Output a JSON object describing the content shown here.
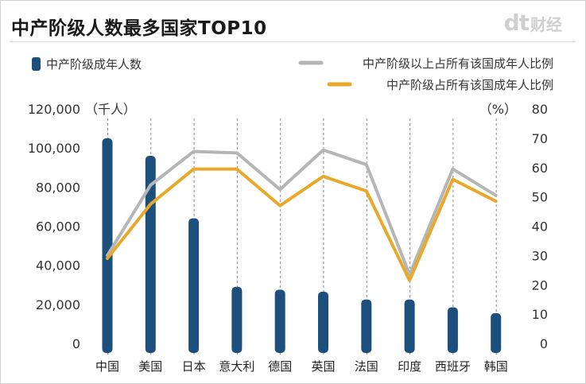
{
  "title": "中产阶级人数最多国家TOP10",
  "logo": {
    "mark": "dt",
    "name": "财经"
  },
  "chart_data": {
    "type": "bar+line",
    "title": "中产阶级人数最多国家TOP10",
    "categories": [
      "中国",
      "美国",
      "日本",
      "意大利",
      "德国",
      "英国",
      "法国",
      "印度",
      "西班牙",
      "韩国"
    ],
    "left_axis": {
      "unit_label": "（千人）",
      "ylim": [
        0,
        120000
      ],
      "ticks": [
        "0",
        "20,000",
        "40,000",
        "60,000",
        "80,000",
        "100,000",
        "120,000"
      ],
      "tick_values": [
        0,
        20000,
        40000,
        60000,
        80000,
        100000,
        120000
      ]
    },
    "right_axis": {
      "unit_label": "（%）",
      "ylim": [
        0,
        80
      ],
      "ticks": [
        "0",
        "10",
        "20",
        "30",
        "40",
        "50",
        "60",
        "70",
        "80"
      ],
      "tick_values": [
        0,
        10,
        20,
        30,
        40,
        50,
        60,
        70,
        80
      ]
    },
    "series": [
      {
        "name": "中产阶级成年人数",
        "type": "bar",
        "axis": "left",
        "color": "#1d4f7c",
        "values": [
          105000,
          96000,
          64000,
          29000,
          27500,
          26500,
          22500,
          22500,
          18500,
          15500
        ]
      },
      {
        "name": "中产阶级以上占所有该国成年人比例",
        "type": "line",
        "axis": "right",
        "color": "#b5b5b5",
        "values": [
          30,
          54,
          65.5,
          65,
          52.5,
          66,
          61,
          23.5,
          59.5,
          50.5
        ]
      },
      {
        "name": "中产阶级占所有该国成年人比例",
        "type": "line",
        "axis": "right",
        "color": "#e8a92a",
        "values": [
          29,
          47.5,
          59.5,
          59.5,
          47,
          57,
          52,
          21.5,
          56,
          48.5
        ]
      }
    ],
    "legend": [
      "中产阶级成年人数",
      "中产阶级以上占所有该国成年人比例",
      "中产阶级占所有该国成年人比例"
    ]
  }
}
